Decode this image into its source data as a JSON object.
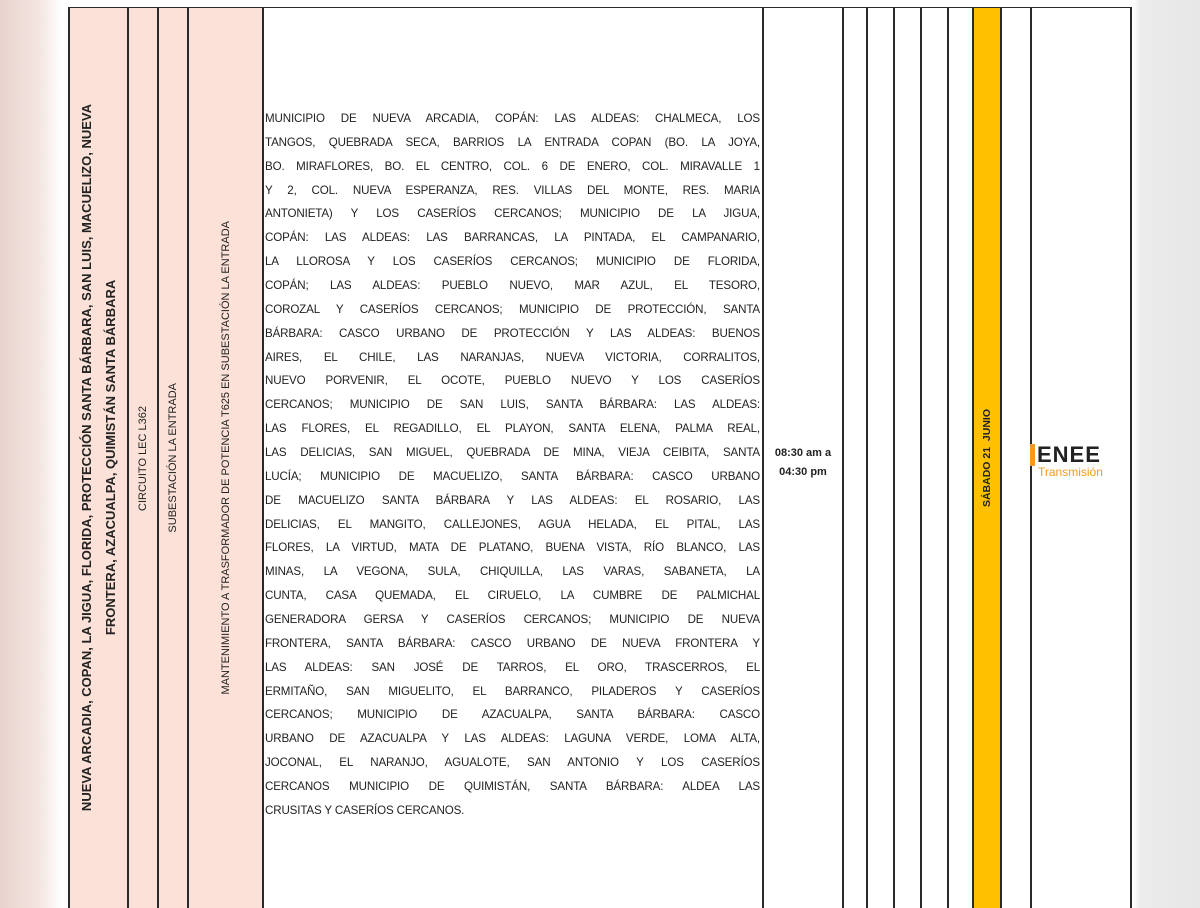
{
  "row": {
    "zone": [
      "NUEVA ARCADIA, COPAN, LA JIGUA, FLORIDA, PROTECCIÓN SANTA BÁRBARA, SAN LUIS, MACUELIZO, NUEVA",
      "FRONTERA, AZACUALPA, QUIMISTÁN SANTA BÁRBARA"
    ],
    "circuit": "CIRCUITO LEC L362",
    "substation": "SUBESTACIÓN LA ENTRADA",
    "work": "MANTENIMIENTO A TRASFORMADOR DE POTENCIA T625 EN SUBESTACIÓN LA ENTRADA",
    "description_lines": [
      "MUNICIPIO DE NUEVA ARCADIA, COPÁN: LAS ALDEAS: CHALMECA, LOS",
      "TANGOS, QUEBRADA SECA, BARRIOS LA ENTRADA COPAN (BO. LA JOYA,",
      "BO. MIRAFLORES, BO. EL CENTRO, COL. 6 DE ENERO, COL. MIRAVALLE 1",
      "Y 2, COL. NUEVA ESPERANZA, RES. VILLAS DEL MONTE, RES. MARIA",
      "ANTONIETA) Y LOS CASERÍOS CERCANOS; MUNICIPIO DE LA JIGUA,",
      "COPÁN: LAS ALDEAS: LAS BARRANCAS, LA PINTADA, EL CAMPANARIO,",
      "LA LLOROSA Y LOS CASERÍOS CERCANOS; MUNICIPIO DE FLORIDA,",
      "COPÁN; LAS ALDEAS: PUEBLO NUEVO, MAR AZUL, EL TESORO,",
      "COROZAL Y CASERÍOS CERCANOS; MUNICIPIO DE PROTECCIÓN, SANTA",
      "BÁRBARA: CASCO URBANO DE PROTECCIÓN Y LAS ALDEAS: BUENOS",
      "AIRES, EL CHILE, LAS NARANJAS, NUEVA VICTORIA, CORRALITOS,",
      "NUEVO PORVENIR, EL OCOTE, PUEBLO NUEVO Y LOS CASERÍOS",
      "CERCANOS; MUNICIPIO DE SAN LUIS, SANTA BÁRBARA: LAS ALDEAS:",
      "LAS FLORES, EL REGADILLO, EL PLAYON, SANTA ELENA, PALMA REAL,",
      "LAS DELICIAS, SAN MIGUEL, QUEBRADA DE MINA, VIEJA CEIBITA, SANTA",
      "LUCÍA; MUNICIPIO DE MACUELIZO, SANTA BÁRBARA: CASCO URBANO",
      "DE MACUELIZO SANTA BÁRBARA Y LAS ALDEAS: EL ROSARIO, LAS",
      "DELICIAS, EL MANGITO, CALLEJONES, AGUA HELADA, EL PITAL, LAS",
      "FLORES, LA VIRTUD, MATA DE PLATANO, BUENA VISTA, RÍO BLANCO, LAS",
      "MINAS, LA VEGONA, SULA, CHIQUILLA, LAS VARAS, SABANETA, LA",
      "CUNTA, CASA QUEMADA, EL CIRUELO, LA CUMBRE DE PALMICHAL",
      "GENERADORA GERSA Y CASERÍOS CERCANOS; MUNICIPIO DE NUEVA",
      "FRONTERA, SANTA BÁRBARA: CASCO URBANO DE NUEVA FRONTERA Y",
      "LAS ALDEAS: SAN JOSÉ DE TARROS, EL ORO, TRASCERROS, EL",
      "ERMITAÑO, SAN MIGUELITO, EL BARRANCO, PILADEROS Y CASERÍOS",
      "CERCANOS; MUNICIPIO DE AZACUALPA, SANTA BÁRBARA: CASCO",
      "URBANO DE AZACUALPA Y LAS ALDEAS: LAGUNA VERDE, LOMA ALTA,",
      "JOCONAL, EL NARANJO, AGUALOTE, SAN ANTONIO Y LOS CASERÍOS",
      "CERCANOS MUNICIPIO DE QUIMISTÁN, SANTA BÁRBARA: ALDEA LAS",
      "CRUSITAS Y CASERÍOS CERCANOS."
    ],
    "time": [
      "08:30 am a",
      "04:30 pm"
    ],
    "date": "SÁBADO 21  JUNIO"
  },
  "logo": {
    "name": "ENEE",
    "sub": "Transmisión"
  },
  "colors": {
    "peach": "#fbe1d7",
    "highlight": "#ffc000",
    "logo_orange": "#f39a1e"
  }
}
